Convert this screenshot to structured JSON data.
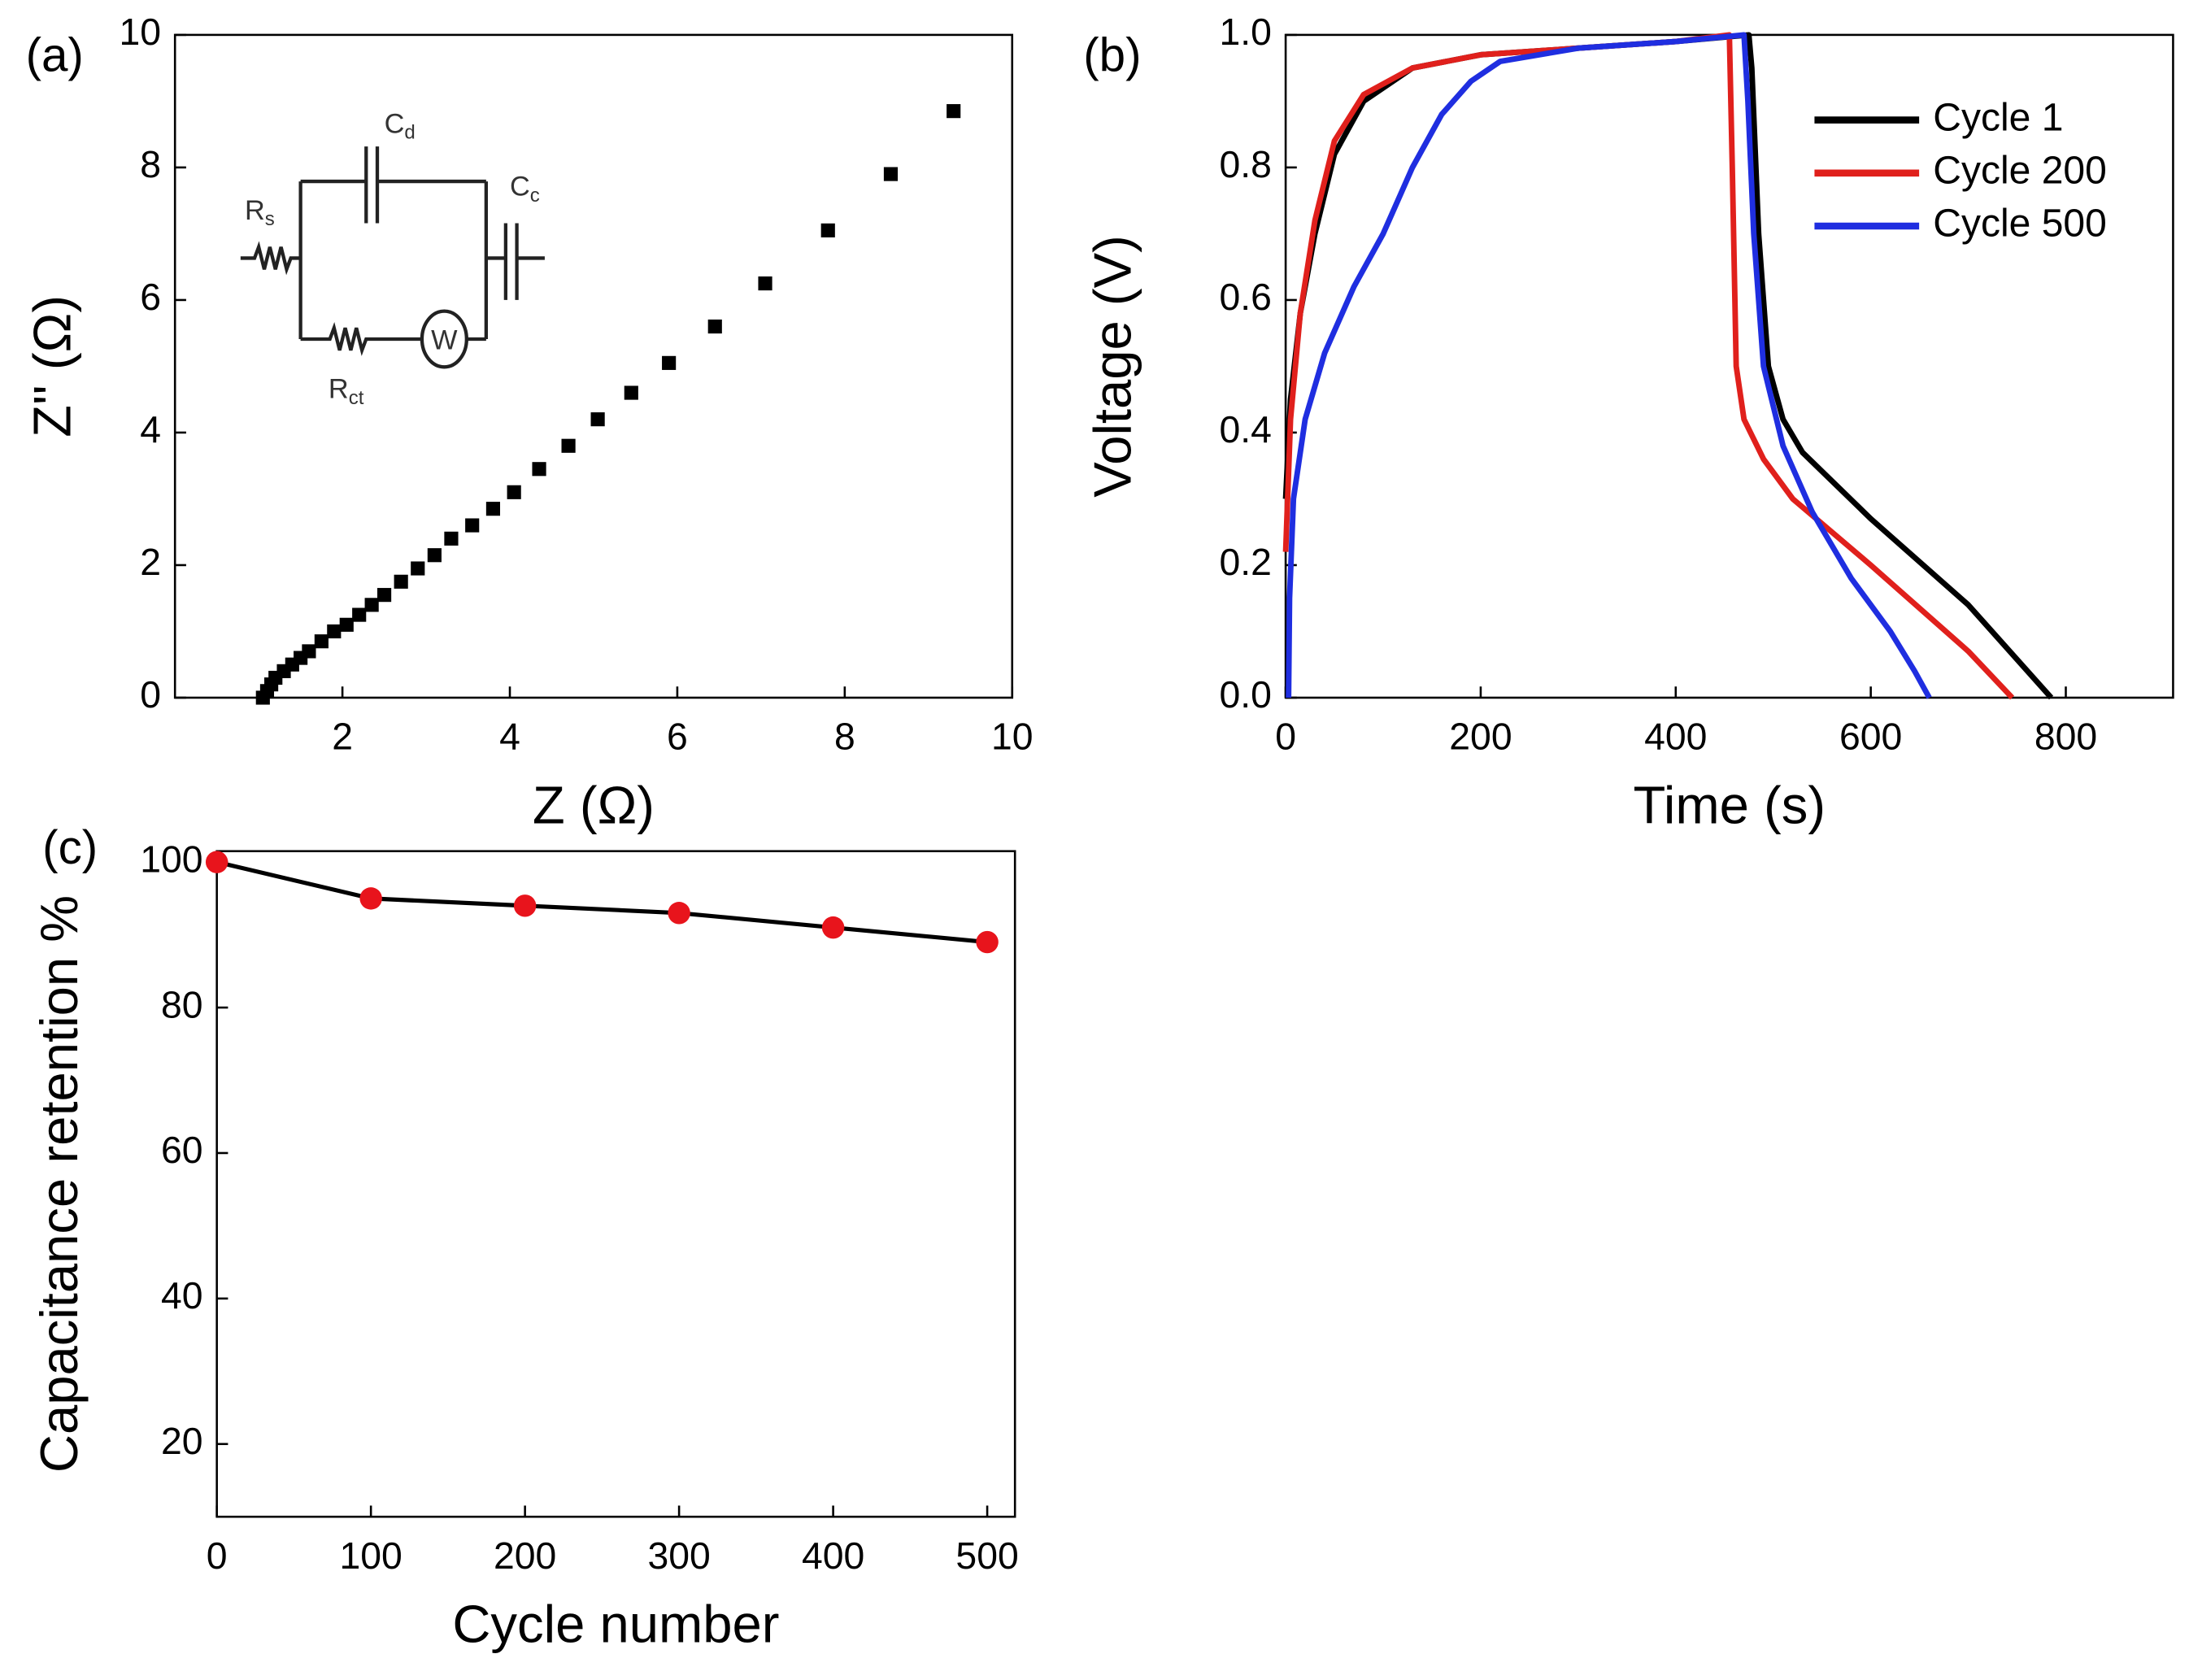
{
  "chart_data": [
    {
      "type": "scatter",
      "label": "(a)",
      "x_label": "Z (Ω)",
      "y_label": "Z'' (Ω)",
      "x": [
        1.05,
        1.1,
        1.15,
        1.2,
        1.3,
        1.4,
        1.5,
        1.6,
        1.75,
        1.9,
        2.05,
        2.2,
        2.35,
        2.5,
        2.7,
        2.9,
        3.1,
        3.3,
        3.55,
        3.8,
        4.05,
        4.35,
        4.7,
        5.05,
        5.45,
        5.9,
        6.45,
        7.05,
        7.8,
        8.55,
        9.3
      ],
      "values": [
        0,
        0.1,
        0.2,
        0.3,
        0.4,
        0.5,
        0.6,
        0.7,
        0.85,
        1.0,
        1.1,
        1.25,
        1.4,
        1.55,
        1.75,
        1.95,
        2.15,
        2.4,
        2.6,
        2.85,
        3.1,
        3.45,
        3.8,
        4.2,
        4.6,
        5.05,
        5.6,
        6.25,
        7.05,
        7.9,
        8.85
      ],
      "color": "#000000",
      "xlim": [
        0,
        10
      ],
      "xticks": [
        2,
        4,
        6,
        8,
        10
      ],
      "ylim": [
        0,
        10
      ],
      "yticks": [
        0,
        2,
        4,
        6,
        8,
        10
      ],
      "inset": {
        "labels": [
          {
            "main": "C",
            "sub": "d"
          },
          {
            "main": "C",
            "sub": "c"
          },
          {
            "main": "R",
            "sub": "s"
          },
          {
            "main": "R",
            "sub": "ct"
          }
        ],
        "element": "W"
      }
    },
    {
      "type": "line",
      "label": "(b)",
      "x_label": "Time (s)",
      "y_label": "Voltage (V)",
      "legend": "upper right",
      "series": [
        {
          "name": "Cycle 1",
          "color": "#000000",
          "x": [
            0,
            5,
            15,
            30,
            50,
            80,
            130,
            200,
            300,
            400,
            475,
            478,
            485,
            495,
            510,
            530,
            600,
            700,
            785
          ],
          "values": [
            0.3,
            0.45,
            0.58,
            0.7,
            0.82,
            0.9,
            0.95,
            0.97,
            0.98,
            0.99,
            1.0,
            0.95,
            0.7,
            0.5,
            0.42,
            0.37,
            0.27,
            0.14,
            0.0
          ]
        },
        {
          "name": "Cycle 200",
          "color": "#e0201c",
          "x": [
            0,
            5,
            15,
            30,
            50,
            80,
            130,
            200,
            300,
            400,
            455,
            458,
            462,
            470,
            490,
            520,
            600,
            700,
            745
          ],
          "values": [
            0.22,
            0.42,
            0.58,
            0.72,
            0.84,
            0.91,
            0.95,
            0.97,
            0.98,
            0.99,
            1.0,
            0.8,
            0.5,
            0.42,
            0.36,
            0.3,
            0.2,
            0.07,
            0.0
          ]
        },
        {
          "name": "Cycle 500",
          "color": "#1f2ee0",
          "x": [
            3,
            4,
            8,
            20,
            40,
            70,
            100,
            130,
            160,
            190,
            220,
            300,
            400,
            470,
            474,
            480,
            490,
            510,
            540,
            580,
            620,
            645,
            660
          ],
          "values": [
            0.0,
            0.15,
            0.3,
            0.42,
            0.52,
            0.62,
            0.7,
            0.8,
            0.88,
            0.93,
            0.96,
            0.98,
            0.99,
            1.0,
            0.9,
            0.7,
            0.5,
            0.38,
            0.28,
            0.18,
            0.1,
            0.04,
            0.0
          ]
        }
      ],
      "xlim": [
        0,
        910
      ],
      "xticks": [
        0,
        200,
        400,
        600,
        800
      ],
      "ylim": [
        0,
        1
      ],
      "yticks": [
        {
          "value": 0,
          "label": "0.0"
        },
        {
          "value": 0.2,
          "label": "0.2"
        },
        {
          "value": 0.4,
          "label": "0.4"
        },
        {
          "value": 0.6,
          "label": "0.6"
        },
        {
          "value": 0.8,
          "label": "0.8"
        },
        {
          "value": 1,
          "label": "1.0"
        }
      ]
    },
    {
      "type": "line",
      "label": "(c)",
      "x_label": "Cycle number",
      "y_label": "Capacitance retention %",
      "marker": "circle",
      "x": [
        0,
        100,
        200,
        300,
        400,
        500
      ],
      "series": [
        {
          "color": "#000000",
          "marker_color": "#e8141c",
          "values": [
            100,
            95,
            94,
            93,
            91,
            89
          ]
        }
      ],
      "xlim": [
        0,
        518
      ],
      "xticks": [
        0,
        100,
        200,
        300,
        400,
        500
      ],
      "ylim": [
        10,
        101.5
      ],
      "yticks": [
        20,
        40,
        60,
        80,
        100
      ]
    }
  ]
}
